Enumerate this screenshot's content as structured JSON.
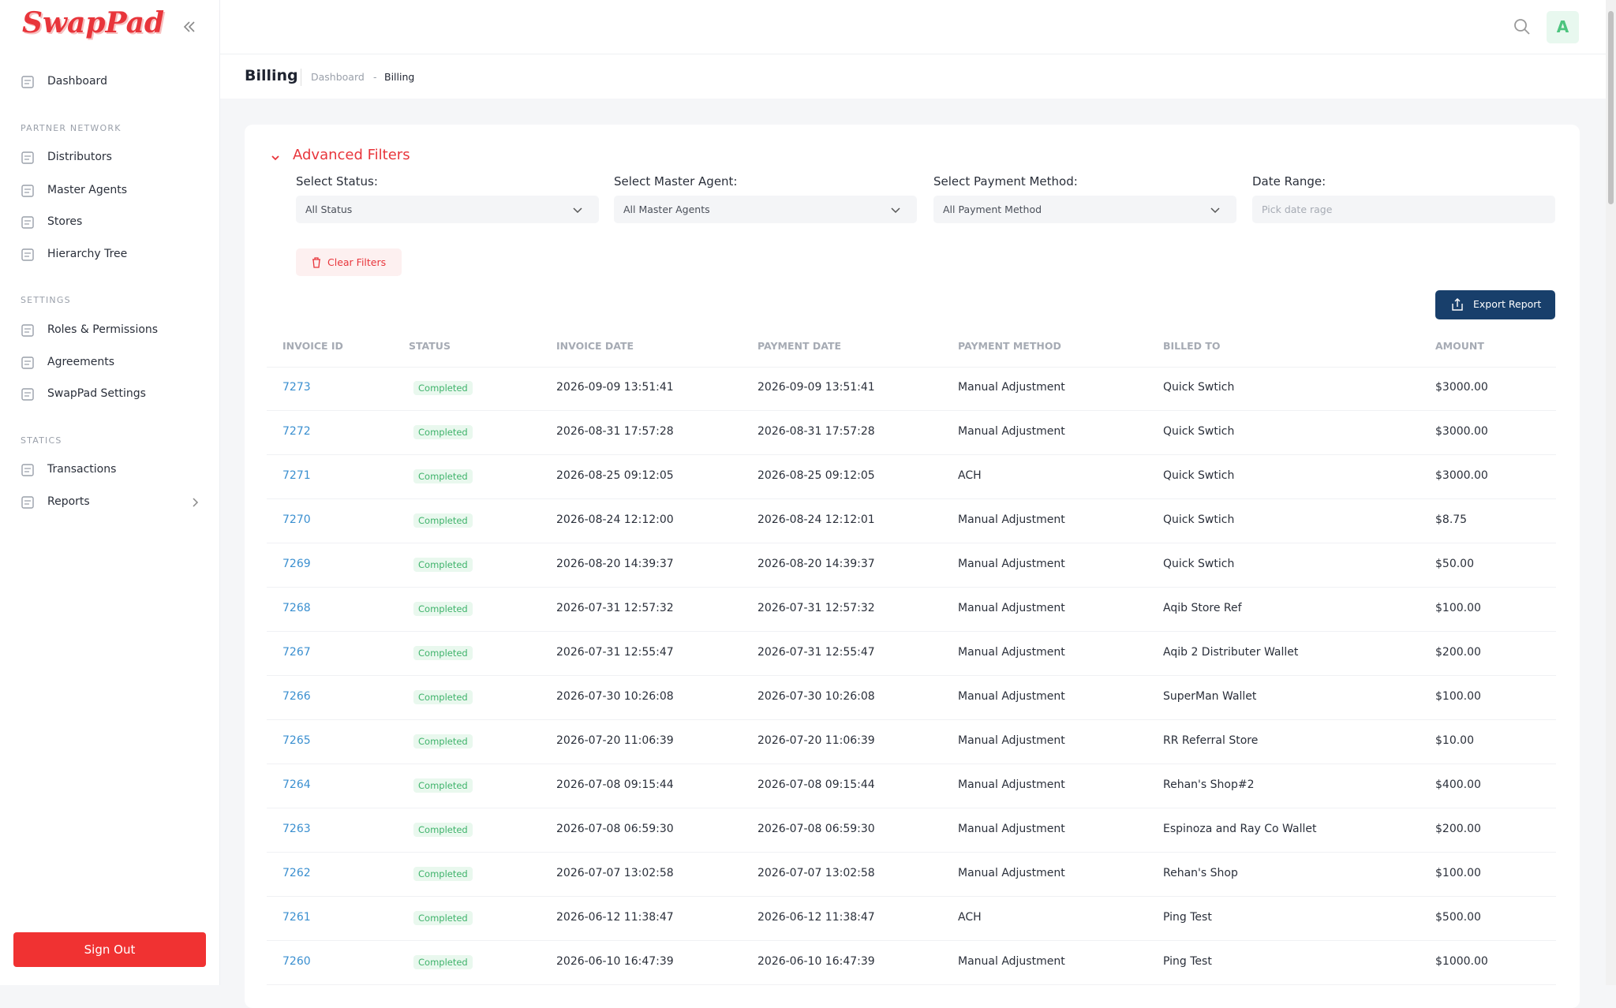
{
  "sidebar": {
    "logo": "SwapPad",
    "nav": [
      {
        "label": "Dashboard"
      },
      {
        "section": "PARTNER NETWORK"
      },
      {
        "label": "Distributors"
      },
      {
        "label": "Master Agents"
      },
      {
        "label": "Stores"
      },
      {
        "label": "Hierarchy Tree"
      },
      {
        "section": "SETTINGS"
      },
      {
        "label": "Roles & Permissions"
      },
      {
        "label": "Agreements"
      },
      {
        "label": "SwapPad Settings"
      },
      {
        "section": "STATICS"
      },
      {
        "label": "Transactions"
      },
      {
        "label": "Reports"
      }
    ],
    "sign_out": "Sign Out"
  },
  "header": {
    "avatar": "A",
    "title": "Billing",
    "breadcrumb": [
      "Dashboard",
      "-",
      "Billing"
    ]
  },
  "filters": {
    "title": "Advanced Filters",
    "fields": [
      {
        "label": "Select Status:",
        "placeholder": "All Status"
      },
      {
        "label": "Select Master Agent:",
        "placeholder": "All Master Agents"
      },
      {
        "label": "Select Payment Method:",
        "placeholder": "All Payment Method"
      },
      {
        "label": "Date Range:",
        "placeholder": "Pick date rage"
      }
    ],
    "clear": "Clear Filters",
    "export": "Export Report"
  },
  "table": {
    "columns": [
      "INVOICE ID",
      "STATUS",
      "INVOICE DATE",
      "PAYMENT DATE",
      "PAYMENT METHOD",
      "BILLED TO",
      "AMOUNT"
    ],
    "rows": [
      [
        "7273",
        "Completed",
        "2026-09-09 13:51:41",
        "2026-09-09 13:51:41",
        "Manual Adjustment",
        "Quick Swtich",
        "$3000.00"
      ],
      [
        "7272",
        "Completed",
        "2026-08-31 17:57:28",
        "2026-08-31 17:57:28",
        "Manual Adjustment",
        "Quick Swtich",
        "$3000.00"
      ],
      [
        "7271",
        "Completed",
        "2026-08-25 09:12:05",
        "2026-08-25 09:12:05",
        "ACH",
        "Quick Swtich",
        "$3000.00"
      ],
      [
        "7270",
        "Completed",
        "2026-08-24 12:12:00",
        "2026-08-24 12:12:01",
        "Manual Adjustment",
        "Quick Swtich",
        "$8.75"
      ],
      [
        "7269",
        "Completed",
        "2026-08-20 14:39:37",
        "2026-08-20 14:39:37",
        "Manual Adjustment",
        "Quick Swtich",
        "$50.00"
      ],
      [
        "7268",
        "Completed",
        "2026-07-31 12:57:32",
        "2026-07-31 12:57:32",
        "Manual Adjustment",
        "Aqib Store Ref",
        "$100.00"
      ],
      [
        "7267",
        "Completed",
        "2026-07-31 12:55:47",
        "2026-07-31 12:55:47",
        "Manual Adjustment",
        "Aqib 2 Distributer Wallet",
        "$200.00"
      ],
      [
        "7266",
        "Completed",
        "2026-07-30 10:26:08",
        "2026-07-30 10:26:08",
        "Manual Adjustment",
        "SuperMan Wallet",
        "$100.00"
      ],
      [
        "7265",
        "Completed",
        "2026-07-20 11:06:39",
        "2026-07-20 11:06:39",
        "Manual Adjustment",
        "RR Referral Store",
        "$10.00"
      ],
      [
        "7264",
        "Completed",
        "2026-07-08 09:15:44",
        "2026-07-08 09:15:44",
        "Manual Adjustment",
        "Rehan's Shop#2",
        "$400.00"
      ],
      [
        "7263",
        "Completed",
        "2026-07-08 06:59:30",
        "2026-07-08 06:59:30",
        "Manual Adjustment",
        "Espinoza and Ray Co Wallet",
        "$200.00"
      ],
      [
        "7262",
        "Completed",
        "2026-07-07 13:02:58",
        "2026-07-07 13:02:58",
        "Manual Adjustment",
        "Rehan's Shop",
        "$100.00"
      ],
      [
        "7261",
        "Completed",
        "2026-06-12 11:38:47",
        "2026-06-12 11:38:47",
        "ACH",
        "Ping Test",
        "$500.00"
      ],
      [
        "7260",
        "Completed",
        "2026-06-10 16:47:39",
        "2026-06-10 16:47:39",
        "Manual Adjustment",
        "Ping Test",
        "$1000.00"
      ]
    ]
  }
}
